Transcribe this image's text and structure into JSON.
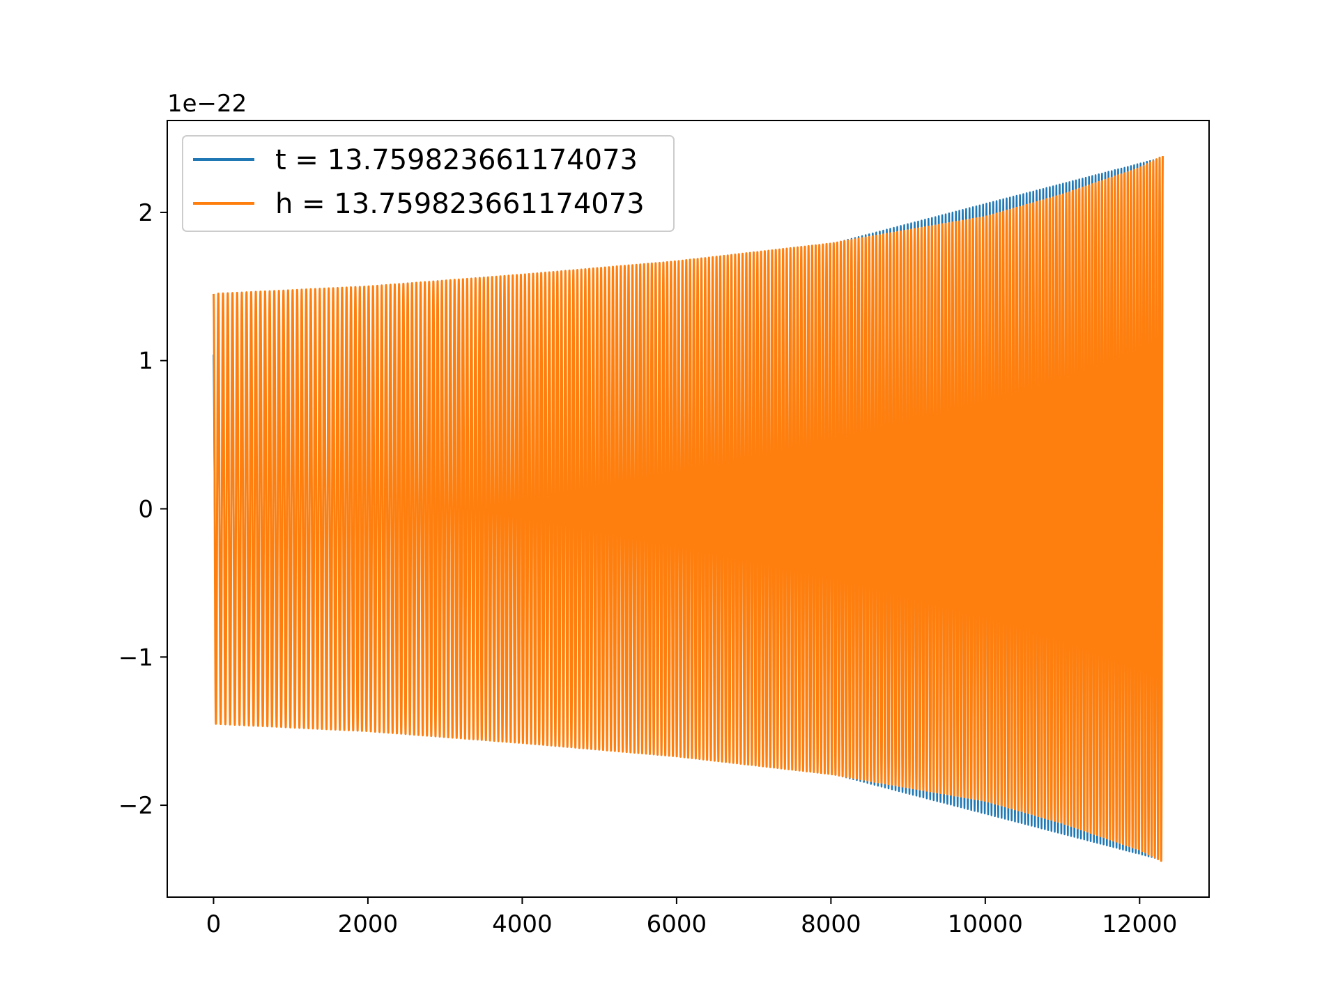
{
  "chart_data": {
    "type": "line",
    "title": "",
    "xlabel": "",
    "ylabel": "",
    "y_offset_label": "1e−22",
    "xlim": [
      -600,
      12900
    ],
    "ylim": [
      -2.62,
      2.62
    ],
    "x_ticks": [
      0,
      2000,
      4000,
      6000,
      8000,
      10000,
      12000
    ],
    "x_tick_labels": [
      "0",
      "2000",
      "4000",
      "6000",
      "8000",
      "10000",
      "12000"
    ],
    "y_ticks": [
      -2,
      -1,
      0,
      1,
      2
    ],
    "y_tick_labels": [
      "−2",
      "−1",
      "0",
      "1",
      "2"
    ],
    "grid": false,
    "legend_position": "upper-left",
    "series": [
      {
        "name": "t = 13.759823661174073",
        "color": "#1f77b4",
        "kind": "chirp-oscillation",
        "x_start": 0,
        "x_end": 12300,
        "envelope": [
          [
            0,
            1.04
          ],
          [
            0,
            1.04
          ],
          [
            10,
            0.7
          ],
          [
            12300,
            2.37
          ]
        ],
        "cycles": 200
      },
      {
        "name": "h = 13.759823661174073",
        "color": "#ff7f0e",
        "kind": "chirp-oscillation",
        "x_start": 0,
        "x_end": 12300,
        "envelope": [
          [
            0,
            1.45
          ],
          [
            2000,
            1.5
          ],
          [
            4000,
            1.58
          ],
          [
            6000,
            1.67
          ],
          [
            8000,
            1.79
          ],
          [
            10000,
            1.97
          ],
          [
            11000,
            2.12
          ],
          [
            12000,
            2.3
          ],
          [
            12300,
            2.38
          ]
        ],
        "cycles": 200
      }
    ]
  }
}
